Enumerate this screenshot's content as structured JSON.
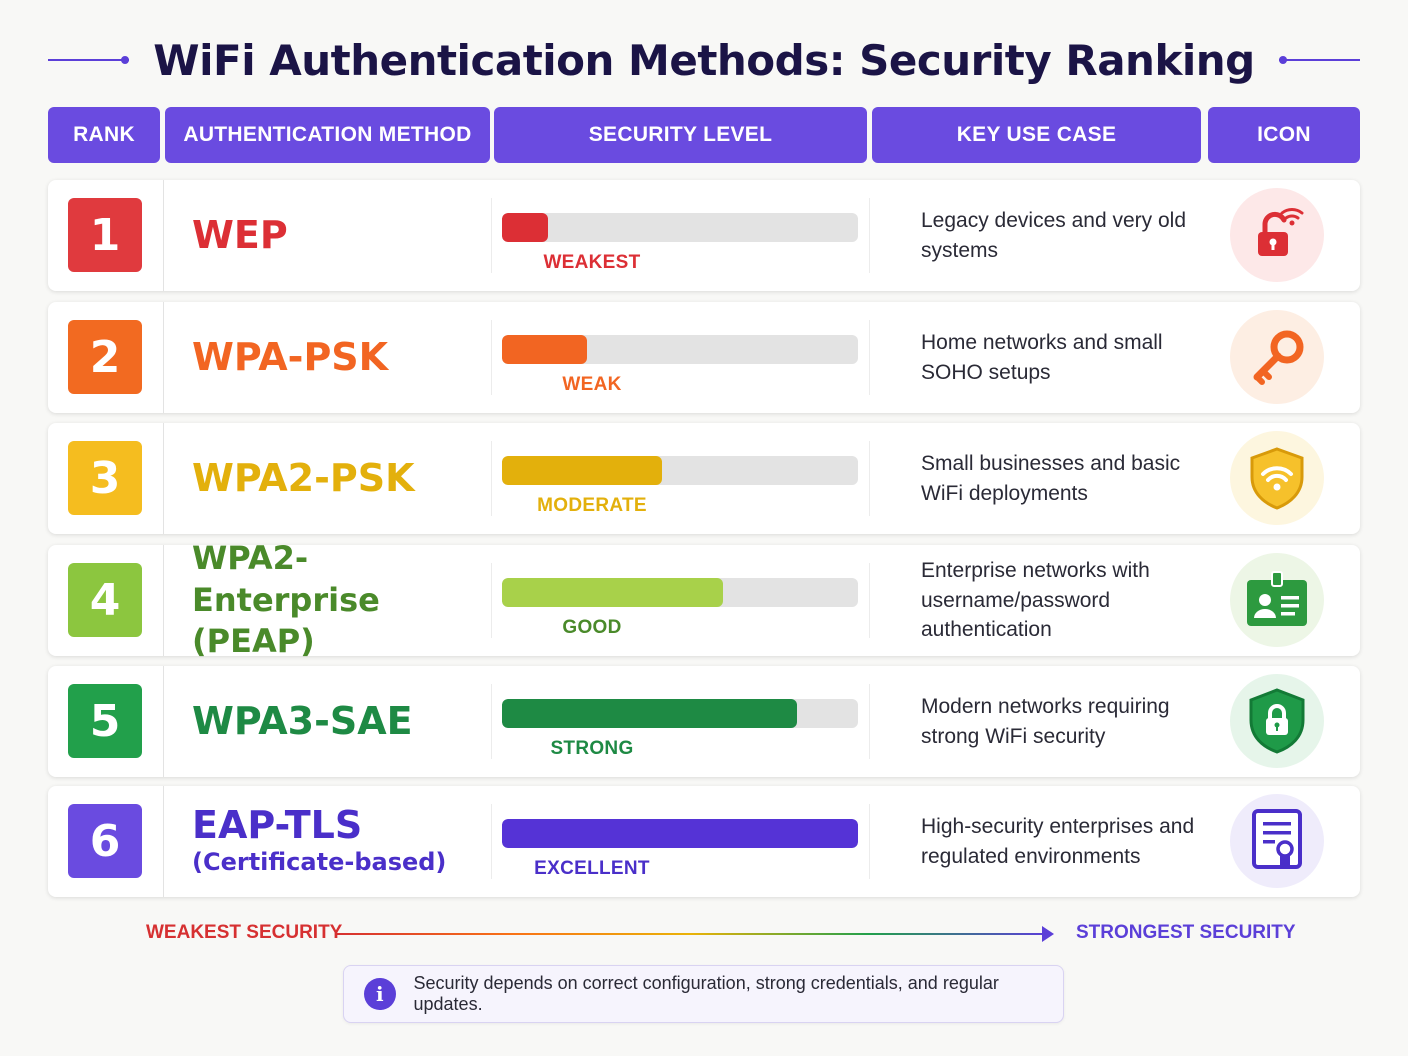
{
  "title": "WiFi Authentication Methods: Security Ranking",
  "header": {
    "rank": "RANK",
    "method": "AUTHENTICATION METHOD",
    "security": "SECURITY LEVEL",
    "usecase": "KEY USE CASE",
    "icon": "ICON"
  },
  "rows": [
    {
      "rank": "1",
      "method": "WEP",
      "method_sub": "",
      "level_label": "WEAKEST",
      "level_fraction": 0.13,
      "use_case": "Legacy devices and very old systems",
      "color": "#dc2f35",
      "badge_color": "#e03a3e",
      "icon_bg": "#fde8e8",
      "icon": "unlocked-wifi-lock-icon"
    },
    {
      "rank": "2",
      "method": "WPA-PSK",
      "method_sub": "",
      "level_label": "WEAK",
      "level_fraction": 0.24,
      "use_case": "Home networks and small SOHO setups",
      "color": "#f26522",
      "badge_color": "#f26a21",
      "icon_bg": "#fdeee3",
      "icon": "key-icon"
    },
    {
      "rank": "3",
      "method": "WPA2-PSK",
      "method_sub": "",
      "level_label": "MODERATE",
      "level_fraction": 0.45,
      "use_case": "Small businesses and basic WiFi deployments",
      "color": "#e3b00c",
      "badge_color": "#f5bd1f",
      "icon_bg": "#fdf6df",
      "icon": "wifi-shield-icon"
    },
    {
      "rank": "4",
      "method": "WPA2-Enterprise",
      "method_sub": "(PEAP)",
      "level_label": "GOOD",
      "level_fraction": 0.62,
      "use_case": "Enterprise networks with username/password authentication",
      "color": "#4a8a2a",
      "badge_color": "#8cc63f",
      "icon_bg": "#edf6e6",
      "bar_color": "#a8d14a",
      "icon": "id-badge-icon"
    },
    {
      "rank": "5",
      "method": "WPA3-SAE",
      "method_sub": "",
      "level_label": "STRONG",
      "level_fraction": 0.83,
      "use_case": "Modern networks requiring strong WiFi security",
      "color": "#1e8a44",
      "badge_color": "#22a04b",
      "icon_bg": "#e6f5ea",
      "icon": "locked-shield-icon"
    },
    {
      "rank": "6",
      "method": "EAP-TLS",
      "method_sub": "(Certificate-based)",
      "level_label": "EXCELLENT",
      "level_fraction": 1.0,
      "use_case": "High-security enterprises and regulated environments",
      "color": "#4a2fc9",
      "badge_color": "#6a4be0",
      "icon_bg": "#efecfb",
      "bar_color": "#5533d6",
      "icon": "certificate-icon"
    }
  ],
  "scale": {
    "left": "WEAKEST SECURITY",
    "right": "STRONGEST SECURITY"
  },
  "note": "Security depends on correct configuration, strong credentials, and regular updates."
}
